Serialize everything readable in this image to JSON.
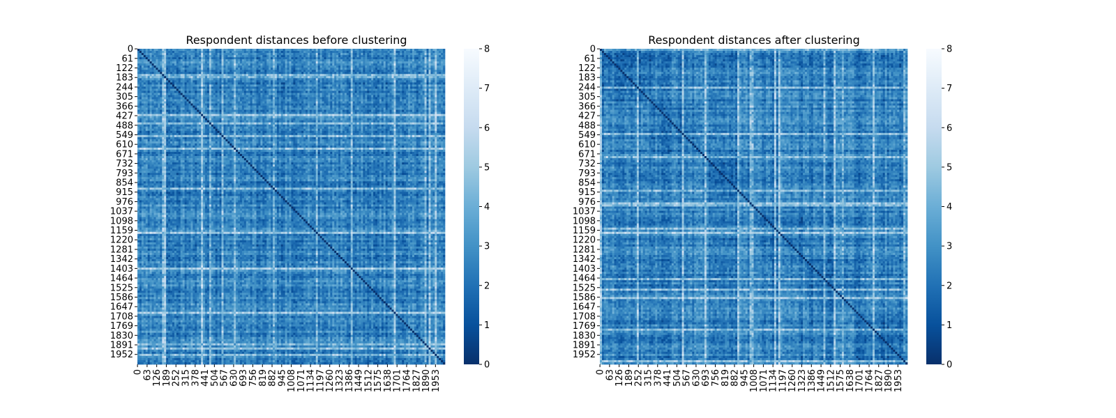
{
  "chart_data": [
    {
      "type": "heatmap",
      "title": "Respondent distances before clustering",
      "xlabel": "",
      "ylabel": "",
      "n": 2016,
      "y_ticks": [
        "0",
        "61",
        "122",
        "183",
        "244",
        "305",
        "366",
        "427",
        "488",
        "549",
        "610",
        "671",
        "732",
        "793",
        "854",
        "915",
        "976",
        "1037",
        "1098",
        "1159",
        "1220",
        "1281",
        "1342",
        "1403",
        "1464",
        "1525",
        "1586",
        "1647",
        "1708",
        "1769",
        "1830",
        "1891",
        "1952"
      ],
      "x_ticks": [
        "0",
        "63",
        "126",
        "189",
        "252",
        "315",
        "378",
        "441",
        "504",
        "567",
        "630",
        "693",
        "756",
        "819",
        "882",
        "945",
        "1008",
        "1071",
        "1134",
        "1197",
        "1260",
        "1323",
        "1386",
        "1449",
        "1512",
        "1575",
        "1638",
        "1701",
        "1764",
        "1827",
        "1890",
        "1953"
      ],
      "colorbar": {
        "min": 0,
        "max": 8,
        "ticks": [
          "0",
          "1",
          "2",
          "3",
          "4",
          "5",
          "6",
          "7",
          "8"
        ],
        "colormap": "Blues_r"
      },
      "typical_value": 2.5,
      "pattern": "unclustered"
    },
    {
      "type": "heatmap",
      "title": "Respondent distances after clustering",
      "xlabel": "",
      "ylabel": "",
      "n": 2016,
      "y_ticks": [
        "0",
        "61",
        "122",
        "183",
        "244",
        "305",
        "366",
        "427",
        "488",
        "549",
        "610",
        "671",
        "732",
        "793",
        "854",
        "915",
        "976",
        "1037",
        "1098",
        "1159",
        "1220",
        "1281",
        "1342",
        "1403",
        "1464",
        "1525",
        "1586",
        "1647",
        "1708",
        "1769",
        "1830",
        "1891",
        "1952"
      ],
      "x_ticks": [
        "0",
        "63",
        "126",
        "189",
        "252",
        "315",
        "378",
        "441",
        "504",
        "567",
        "630",
        "693",
        "756",
        "819",
        "882",
        "945",
        "1008",
        "1071",
        "1134",
        "1197",
        "1260",
        "1323",
        "1386",
        "1449",
        "1512",
        "1575",
        "1638",
        "1701",
        "1764",
        "1827",
        "1890",
        "1953"
      ],
      "colorbar": {
        "min": 0,
        "max": 8,
        "ticks": [
          "0",
          "1",
          "2",
          "3",
          "4",
          "5",
          "6",
          "7",
          "8"
        ],
        "colormap": "Blues_r"
      },
      "typical_value": 2.5,
      "pattern": "block-structured"
    }
  ],
  "colors": {
    "dark": "#08306b",
    "mid": "#2171b5",
    "light": "#c6dbef",
    "white": "#f7fbff"
  }
}
